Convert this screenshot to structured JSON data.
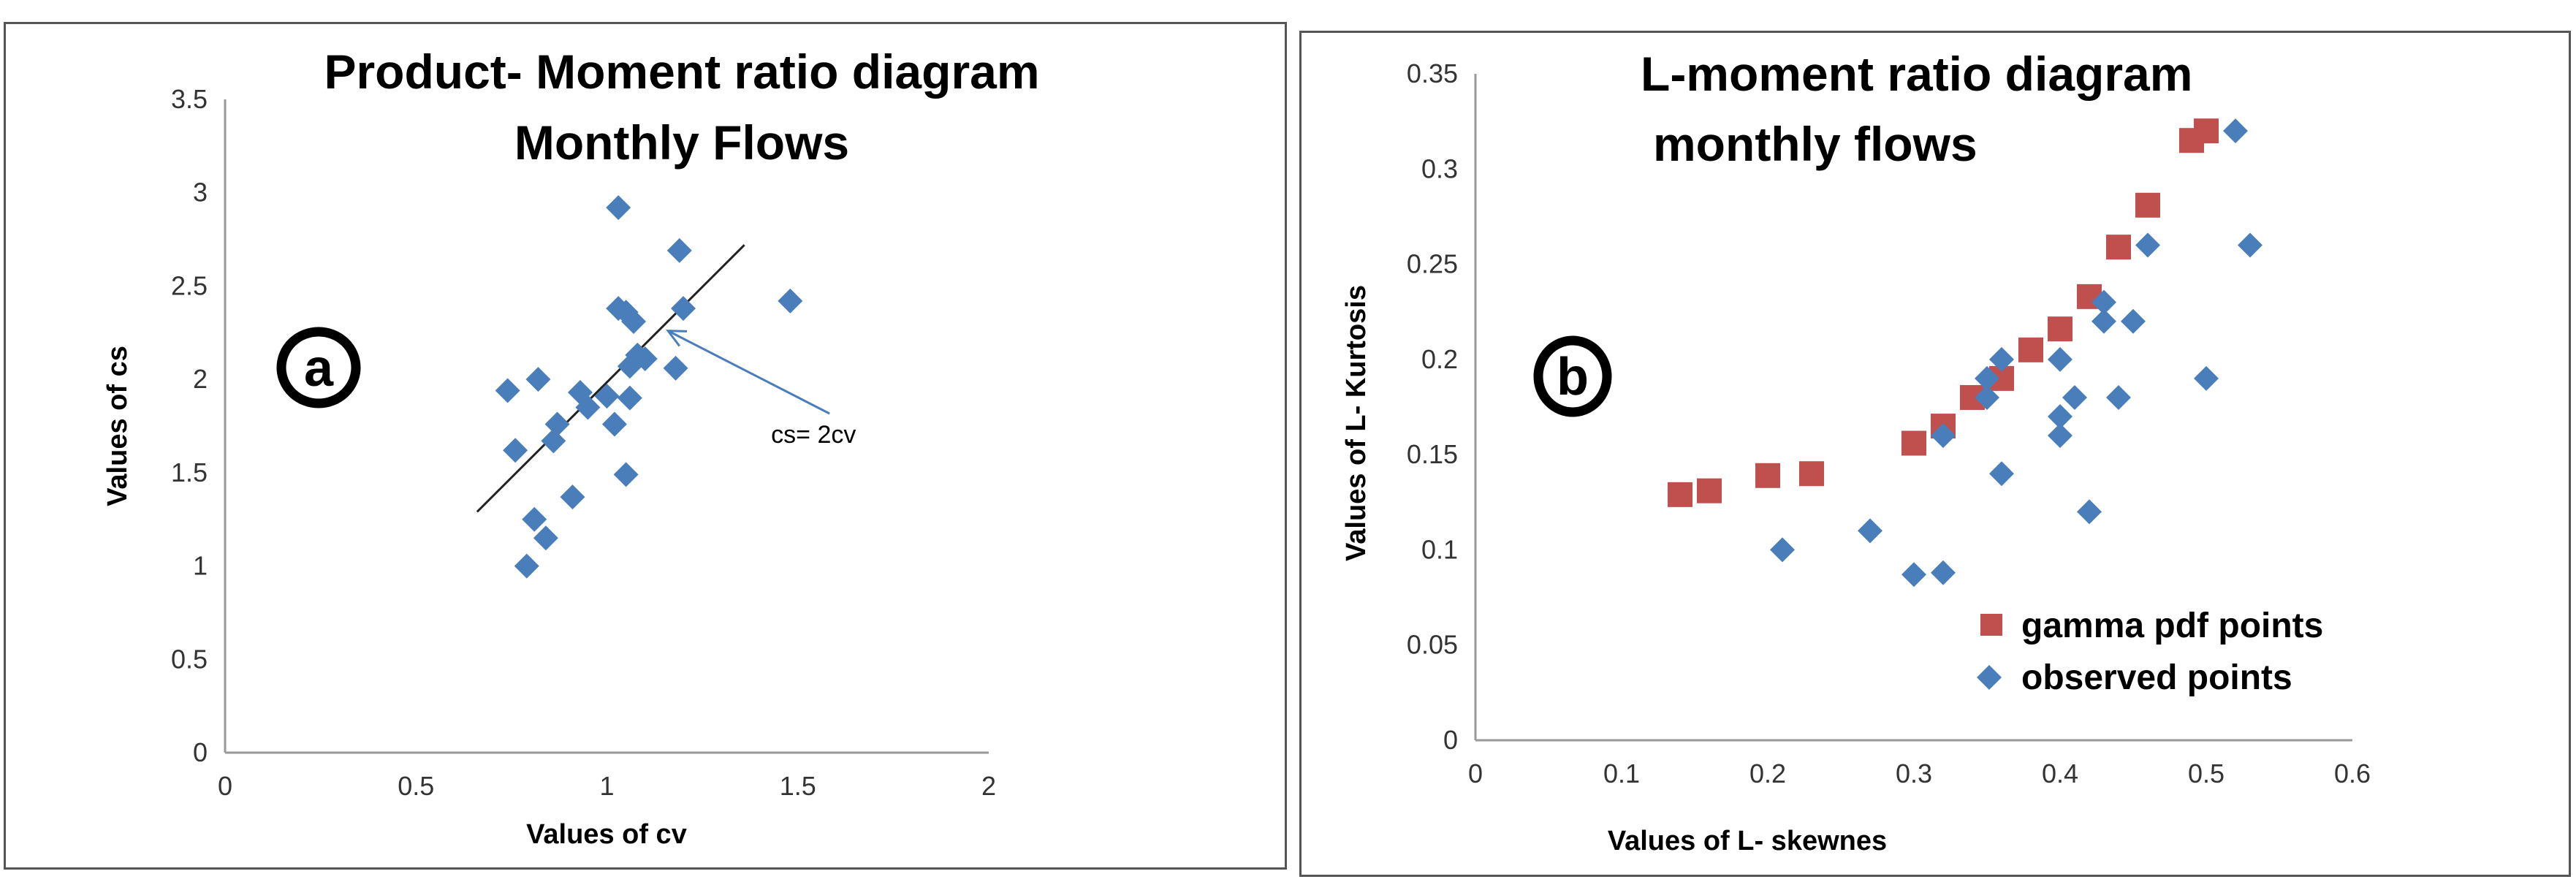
{
  "chart_data": [
    {
      "type": "scatter",
      "panel_label": "a",
      "title": [
        "Product- Moment ratio diagram",
        "Monthly Flows"
      ],
      "xlabel": "Values of cv",
      "ylabel": "Values of cs",
      "xlim": [
        0,
        2
      ],
      "ylim": [
        0,
        3.5
      ],
      "xticks": [
        "0",
        "0.5",
        "1",
        "1.5",
        "2"
      ],
      "yticks": [
        "0",
        "0.5",
        "1",
        "1.5",
        "2",
        "2.5",
        "3",
        "3.5"
      ],
      "grid": false,
      "series": [
        {
          "marker": "diamond",
          "color": "#4a7ebb",
          "points": [
            [
              0.74,
              1.94
            ],
            [
              0.76,
              1.62
            ],
            [
              0.79,
              1.0
            ],
            [
              0.81,
              1.25
            ],
            [
              0.82,
              2.0
            ],
            [
              0.84,
              1.15
            ],
            [
              0.86,
              1.67
            ],
            [
              0.87,
              1.76
            ],
            [
              0.91,
              1.37
            ],
            [
              0.93,
              1.93
            ],
            [
              0.95,
              1.85
            ],
            [
              1.0,
              1.91
            ],
            [
              1.02,
              1.76
            ],
            [
              1.03,
              2.92
            ],
            [
              1.03,
              2.38
            ],
            [
              1.05,
              2.36
            ],
            [
              1.05,
              1.49
            ],
            [
              1.06,
              1.9
            ],
            [
              1.06,
              2.07
            ],
            [
              1.07,
              2.31
            ],
            [
              1.08,
              2.13
            ],
            [
              1.1,
              2.11
            ],
            [
              1.18,
              2.06
            ],
            [
              1.19,
              2.69
            ],
            [
              1.2,
              2.38
            ],
            [
              1.48,
              2.42
            ]
          ]
        }
      ],
      "reference_line": {
        "from": [
          0.66,
          1.29
        ],
        "to": [
          1.36,
          2.72
        ],
        "color": "#222222"
      },
      "annotation": {
        "text": "cs= 2cv",
        "at": [
          1.43,
          1.66
        ],
        "arrow_to": [
          1.16,
          2.26
        ],
        "arrow_color": "#4a7ebb"
      }
    },
    {
      "type": "scatter",
      "panel_label": "b",
      "title": [
        "L-moment ratio diagram",
        "monthly  flows"
      ],
      "xlabel": "Values of L- skewnes",
      "ylabel": "Values of  L- Kurtosis",
      "xlim": [
        0,
        0.6
      ],
      "ylim": [
        0,
        0.35
      ],
      "xticks": [
        "0",
        "0.1",
        "0.2",
        "0.3",
        "0.4",
        "0.5",
        "0.6"
      ],
      "yticks": [
        "0",
        "0.05",
        "0.1",
        "0.15",
        "0.2",
        "0.25",
        "0.3",
        "0.35"
      ],
      "grid": false,
      "legend_position": "bottom-right",
      "series": [
        {
          "name": "gamma pdf points",
          "marker": "square",
          "color": "#c0504d",
          "points": [
            [
              0.14,
              0.129
            ],
            [
              0.16,
              0.131
            ],
            [
              0.2,
              0.139
            ],
            [
              0.23,
              0.14
            ],
            [
              0.3,
              0.156
            ],
            [
              0.32,
              0.165
            ],
            [
              0.34,
              0.18
            ],
            [
              0.36,
              0.19
            ],
            [
              0.38,
              0.205
            ],
            [
              0.4,
              0.216
            ],
            [
              0.42,
              0.233
            ],
            [
              0.44,
              0.259
            ],
            [
              0.46,
              0.281
            ],
            [
              0.49,
              0.315
            ],
            [
              0.5,
              0.32
            ]
          ]
        },
        {
          "name": "observed points",
          "marker": "diamond",
          "color": "#4a7ebb",
          "points": [
            [
              0.21,
              0.1
            ],
            [
              0.27,
              0.11
            ],
            [
              0.3,
              0.087
            ],
            [
              0.32,
              0.088
            ],
            [
              0.32,
              0.16
            ],
            [
              0.35,
              0.18
            ],
            [
              0.35,
              0.19
            ],
            [
              0.36,
              0.2
            ],
            [
              0.36,
              0.14
            ],
            [
              0.4,
              0.2
            ],
            [
              0.4,
              0.17
            ],
            [
              0.4,
              0.16
            ],
            [
              0.41,
              0.18
            ],
            [
              0.42,
              0.12
            ],
            [
              0.43,
              0.23
            ],
            [
              0.43,
              0.22
            ],
            [
              0.44,
              0.18
            ],
            [
              0.45,
              0.22
            ],
            [
              0.46,
              0.26
            ],
            [
              0.5,
              0.19
            ],
            [
              0.52,
              0.32
            ],
            [
              0.53,
              0.26
            ]
          ]
        }
      ]
    }
  ]
}
